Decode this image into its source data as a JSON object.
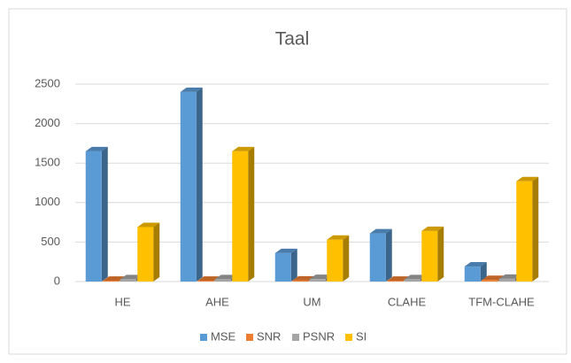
{
  "chart_data": {
    "type": "bar3d",
    "title": "Taal",
    "categories": [
      "HE",
      "AHE",
      "UM",
      "CLAHE",
      "TFM-CLAHE"
    ],
    "series": [
      {
        "name": "MSE",
        "color": "#5b9bd5",
        "values": [
          1650,
          2400,
          360,
          610,
          190
        ]
      },
      {
        "name": "SNR",
        "color": "#ed7d31",
        "values": [
          10,
          10,
          12,
          10,
          20
        ]
      },
      {
        "name": "PSNR",
        "color": "#a5a5a5",
        "values": [
          30,
          30,
          32,
          30,
          35
        ]
      },
      {
        "name": "SI",
        "color": "#ffc000",
        "values": [
          690,
          1650,
          530,
          640,
          1270
        ]
      }
    ],
    "ylim": [
      0,
      2500
    ],
    "yticks": [
      0,
      500,
      1000,
      1500,
      2000,
      2500
    ],
    "grid": true,
    "legend": "bottom"
  }
}
